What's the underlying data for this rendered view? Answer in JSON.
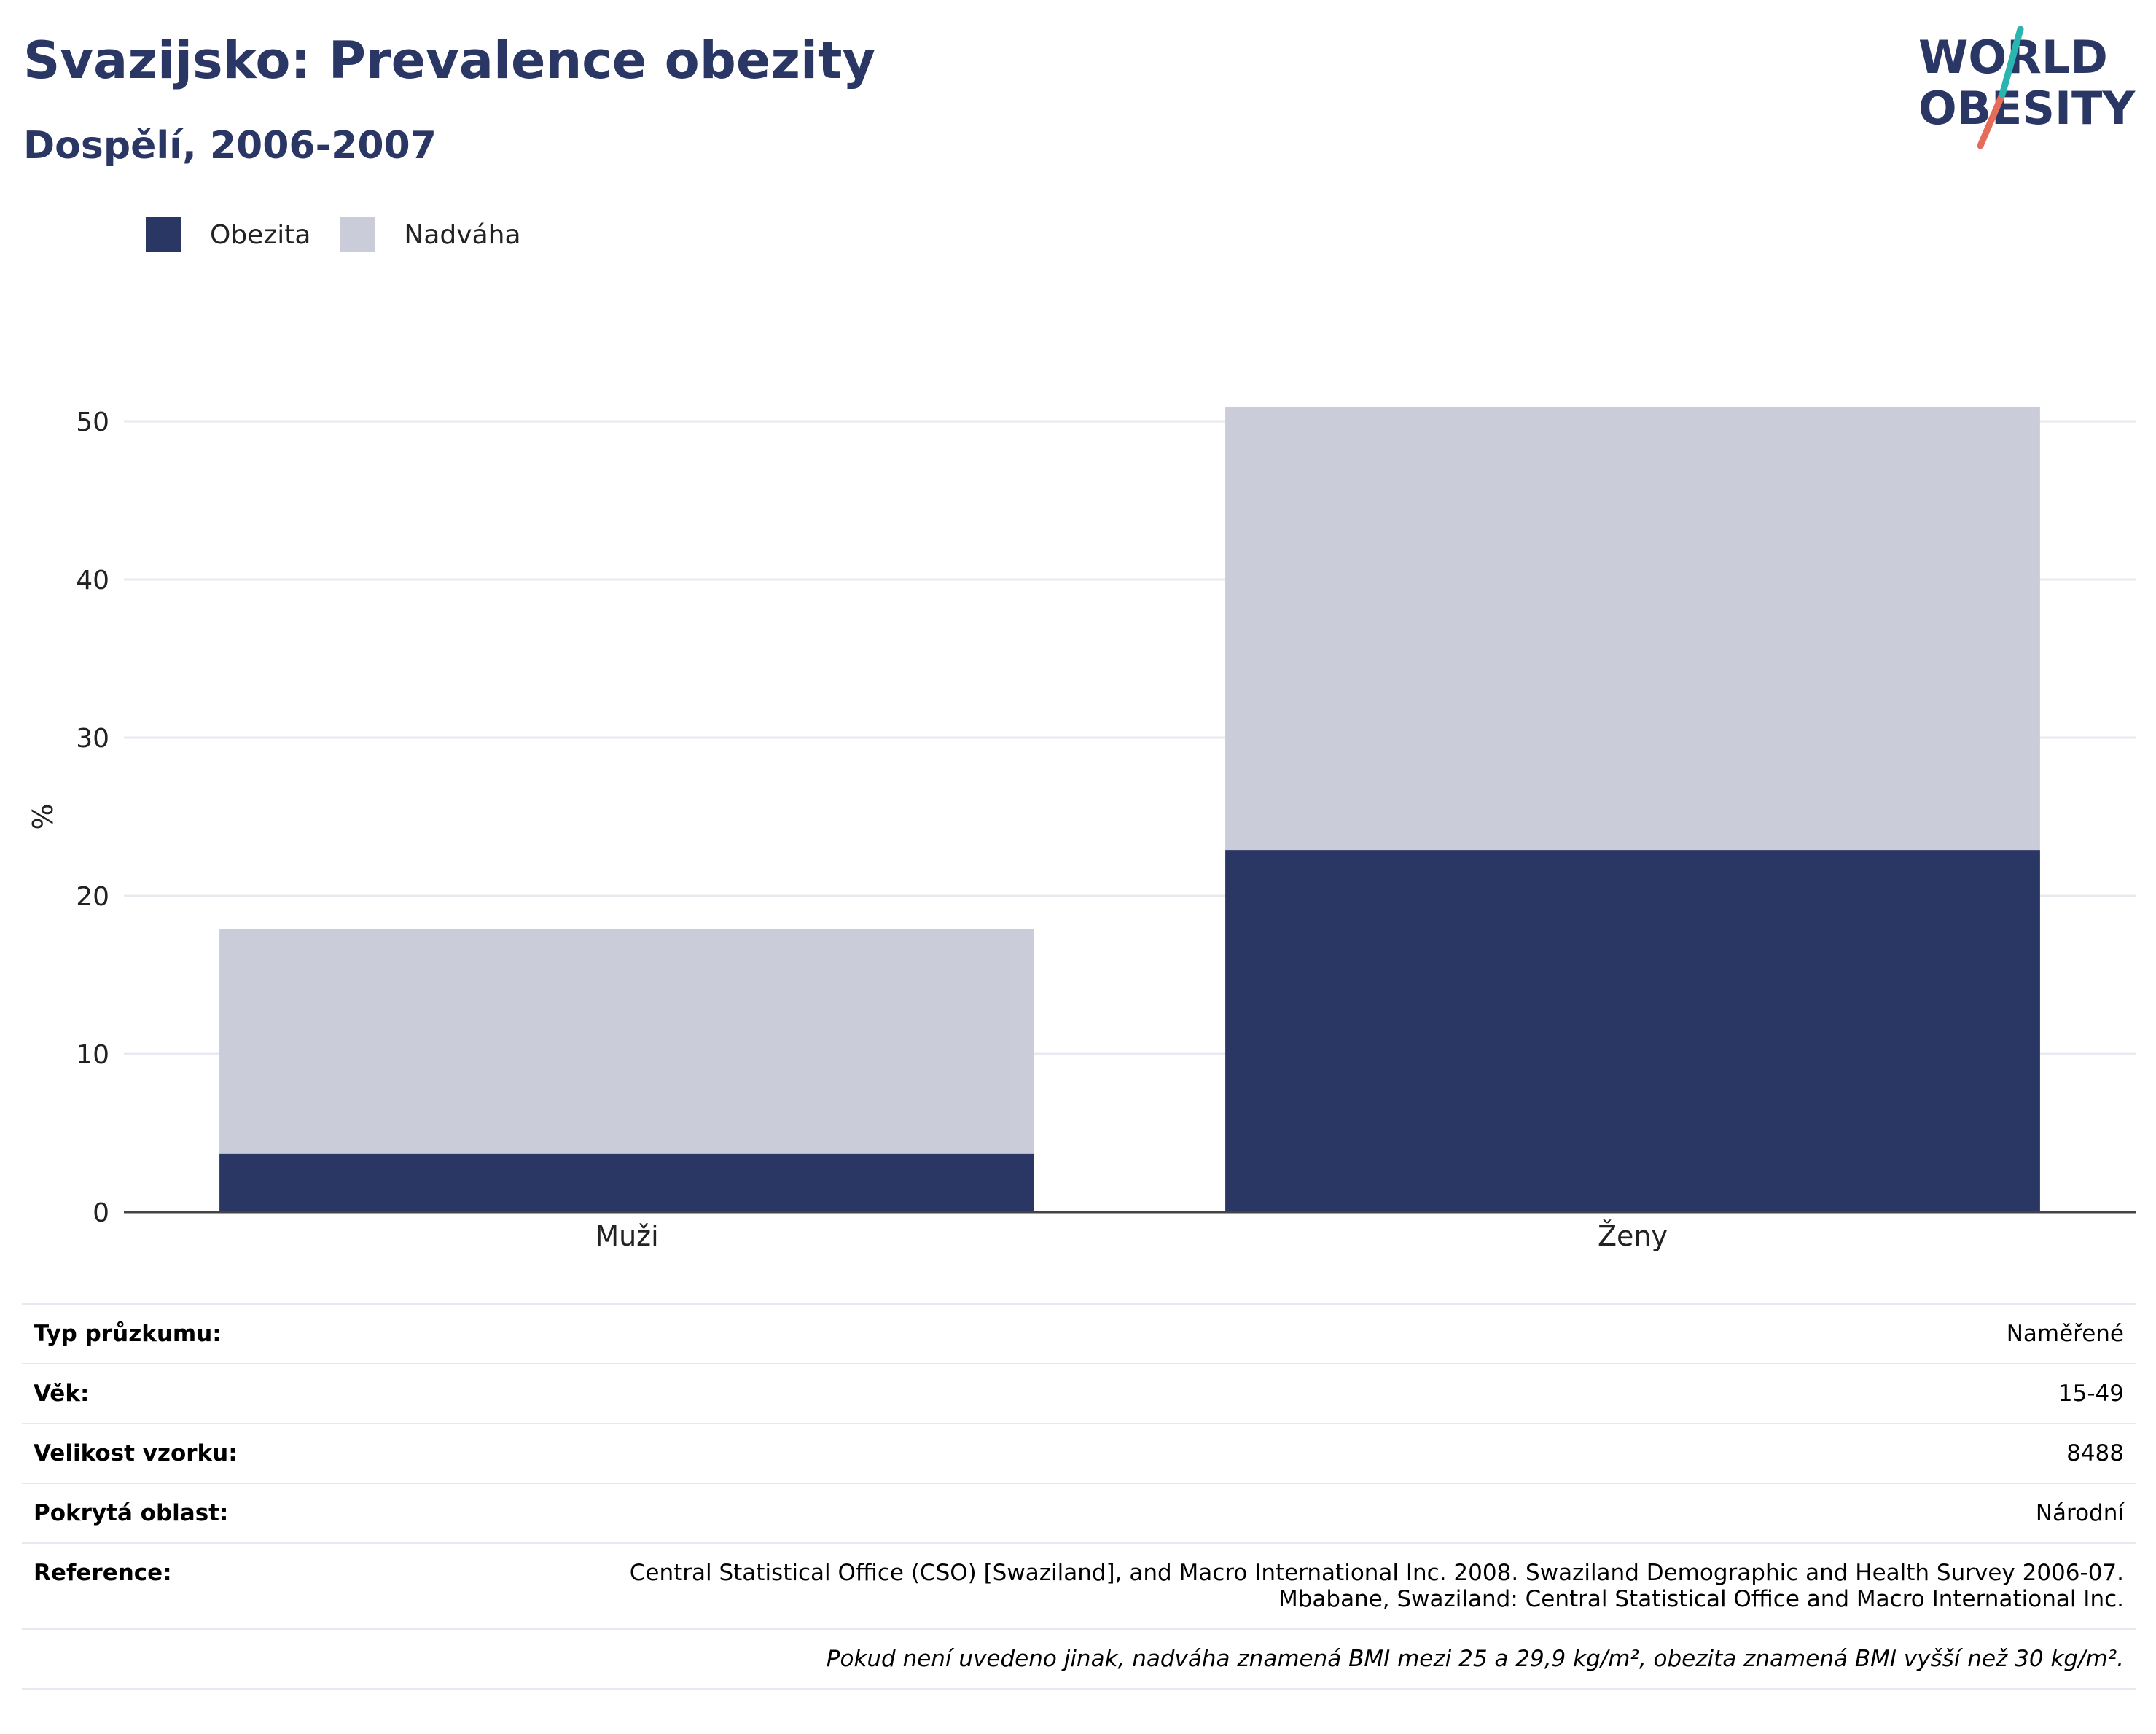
{
  "header": {
    "title": "Svazijsko: Prevalence obezity",
    "subtitle": "Dospělí, 2006-2007"
  },
  "logo": {
    "line1": "WORLD",
    "line2": "OBESITY"
  },
  "colors": {
    "obesity": "#2a3663",
    "overweight": "#cacdd9",
    "grid": "#e8eaf0",
    "brand": "#2a3663",
    "accent_teal": "#2bb5b0",
    "accent_coral": "#e56c5b"
  },
  "chart_data": {
    "type": "bar",
    "stacked": true,
    "categories": [
      "Muži",
      "Ženy"
    ],
    "series": [
      {
        "name": "Obezita",
        "values": [
          3.7,
          22.9
        ]
      },
      {
        "name": "Nadváha",
        "values": [
          14.2,
          28.0
        ]
      }
    ],
    "ylabel": "%",
    "ylim": [
      0,
      50
    ],
    "yticks": [
      0,
      10,
      20,
      30,
      40,
      50
    ],
    "grid": true,
    "legend_position": "top-left"
  },
  "info": {
    "rows": [
      {
        "key": "Typ průzkumu:",
        "value": "Naměřené"
      },
      {
        "key": "Věk:",
        "value": "15-49"
      },
      {
        "key": "Velikost vzorku:",
        "value": "8488"
      },
      {
        "key": "Pokrytá oblast:",
        "value": "Národní"
      }
    ],
    "reference_key": "Reference:",
    "reference_line1": "Central Statistical Office (CSO) [Swaziland], and Macro International Inc. 2008. Swaziland Demographic and Health Survey 2006-07.",
    "reference_line2": "Mbabane, Swaziland: Central Statistical Office and Macro International Inc.",
    "footnote": "Pokud není uvedeno jinak, nadváha znamená BMI mezi 25 a 29,9 kg/m², obezita znamená BMI vyšší než 30 kg/m²."
  }
}
